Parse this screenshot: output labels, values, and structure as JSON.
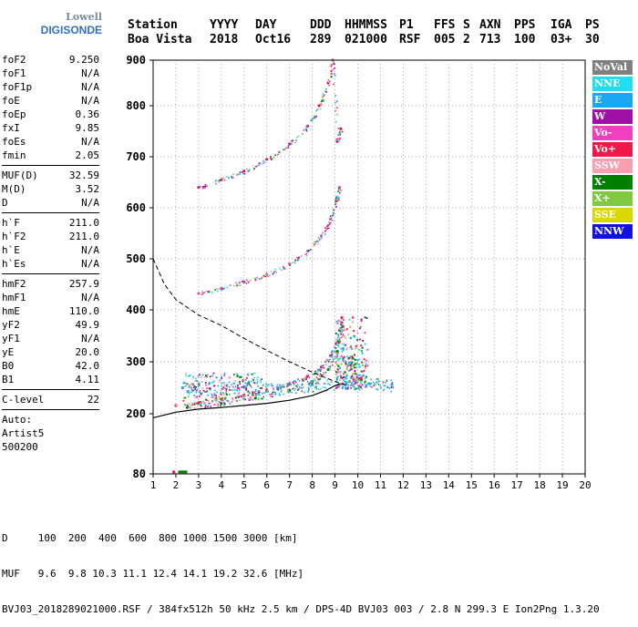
{
  "logo": {
    "line1": "Lowell",
    "line2": "DIGISONDE"
  },
  "header": {
    "labels": [
      "Station",
      "YYYY",
      "DAY",
      "DDD",
      "HHMMSS",
      "P1",
      "FFS",
      "S",
      "AXN",
      "PPS",
      "IGA",
      "PS"
    ],
    "values": [
      "Boa Vista",
      "2018",
      "Oct16",
      "289",
      "021000",
      "RSF",
      "005",
      "2",
      "713",
      "100",
      "03+",
      "30"
    ]
  },
  "params": {
    "group1": [
      {
        "k": "foF2",
        "v": "9.250"
      },
      {
        "k": "foF1",
        "v": "N/A"
      },
      {
        "k": "foF1p",
        "v": "N/A"
      },
      {
        "k": "foE",
        "v": "N/A"
      },
      {
        "k": "foEp",
        "v": "0.36"
      },
      {
        "k": "fxI",
        "v": "9.85"
      },
      {
        "k": "foEs",
        "v": "N/A"
      },
      {
        "k": "fmin",
        "v": "2.05"
      }
    ],
    "group2": [
      {
        "k": "MUF(D)",
        "v": "32.59"
      },
      {
        "k": "M(D)",
        "v": "3.52"
      },
      {
        "k": "D",
        "v": "N/A"
      }
    ],
    "group3": [
      {
        "k": "h`F",
        "v": "211.0"
      },
      {
        "k": "h`F2",
        "v": "211.0"
      },
      {
        "k": "h`E",
        "v": "N/A"
      },
      {
        "k": "h`Es",
        "v": "N/A"
      }
    ],
    "group4": [
      {
        "k": "hmF2",
        "v": "257.9"
      },
      {
        "k": "hmF1",
        "v": "N/A"
      },
      {
        "k": "hmE",
        "v": "110.0"
      },
      {
        "k": "yF2",
        "v": "49.9"
      },
      {
        "k": "yF1",
        "v": "N/A"
      },
      {
        "k": "yE",
        "v": "20.0"
      },
      {
        "k": "B0",
        "v": "42.0"
      },
      {
        "k": "B1",
        "v": "4.11"
      }
    ],
    "group5": [
      {
        "k": "C-level",
        "v": "22"
      }
    ],
    "group6": [
      "Auto:",
      "Artist5",
      "500200"
    ]
  },
  "legend": [
    {
      "label": "NoVal",
      "color": "#808080"
    },
    {
      "label": "NNE",
      "color": "#22ddf0"
    },
    {
      "label": "E",
      "color": "#1aa6f0"
    },
    {
      "label": "W",
      "color": "#a010a8"
    },
    {
      "label": "Vo-",
      "color": "#f040c0"
    },
    {
      "label": "Vo+",
      "color": "#f01848"
    },
    {
      "label": "SSW",
      "color": "#f8a0b0"
    },
    {
      "label": "X-",
      "color": "#008000"
    },
    {
      "label": "X+",
      "color": "#80c840"
    },
    {
      "label": "SSE",
      "color": "#d8d800"
    },
    {
      "label": "NNW",
      "color": "#1010e0"
    }
  ],
  "footer": {
    "line1": "D     100  200  400  600  800 1000 1500 3000 [km]",
    "line2": "MUF   9.6  9.8 10.3 11.1 12.4 14.1 19.2 32.6 [MHz]",
    "line3": "BVJ03_2018289021000.RSF / 384fx512h 50 kHz 2.5 km / DPS-4D BVJ03 003 / 2.8 N 299.3 E Ion2Png 1.3.20"
  },
  "chart_data": {
    "type": "scatter",
    "xlim": [
      1,
      20
    ],
    "ylim": [
      80,
      900
    ],
    "xticks": [
      1,
      2,
      3,
      4,
      5,
      6,
      7,
      8,
      9,
      10,
      11,
      12,
      13,
      14,
      15,
      16,
      17,
      18,
      19,
      20
    ],
    "yticks": [
      80,
      200,
      300,
      400,
      500,
      600,
      700,
      800,
      900
    ],
    "grid": "dotted",
    "traces": [
      {
        "name": "F2 1st hop O",
        "color": "#f01848",
        "x": [
          2.0,
          3.0,
          4.0,
          5.0,
          6.0,
          7.0,
          7.8,
          8.4,
          8.8,
          9.05,
          9.2,
          9.3
        ],
        "y": [
          216,
          221,
          228,
          236,
          246,
          258,
          272,
          290,
          312,
          335,
          360,
          385
        ]
      },
      {
        "name": "F2 2nd hop",
        "color": "#f040c0",
        "x": [
          3.0,
          4.0,
          5.0,
          6.0,
          7.0,
          7.8,
          8.4,
          8.8,
          9.05,
          9.2
        ],
        "y": [
          432,
          442,
          455,
          470,
          490,
          515,
          545,
          578,
          615,
          640
        ]
      },
      {
        "name": "F2 3rd hop",
        "color": "#f01848",
        "x": [
          3.0,
          4.0,
          5.0,
          6.0,
          7.0,
          7.8,
          8.3,
          8.7,
          8.9,
          9.1,
          9.25
        ],
        "y": [
          640,
          655,
          672,
          695,
          725,
          760,
          800,
          850,
          900,
          730,
          755
        ]
      },
      {
        "name": "X-mode",
        "color": "#008000",
        "x": [
          2.5,
          4.0,
          5.5,
          7.0,
          8.0,
          8.7,
          9.1,
          9.35
        ],
        "y": [
          212,
          220,
          230,
          245,
          262,
          285,
          320,
          368
        ]
      },
      {
        "name": "Spread F",
        "color": "#1aa6f0",
        "x": [
          2.3,
          3.5,
          5.0,
          6.5,
          8.0,
          9.5,
          10.5,
          11.5
        ],
        "y": [
          250,
          248,
          252,
          250,
          256,
          260,
          258,
          256
        ]
      }
    ],
    "profile": {
      "x": [
        1.0,
        2.0,
        3.0,
        4.0,
        5.0,
        6.0,
        7.0,
        8.0,
        8.6,
        9.0,
        9.25
      ],
      "y": [
        192,
        203,
        209,
        212,
        216,
        220,
        226,
        235,
        245,
        254,
        258
      ]
    },
    "muf_curve": {
      "x": [
        1.0,
        1.5,
        2.0,
        3.0,
        4.0,
        5.0,
        6.0,
        7.0,
        8.0,
        9.0,
        9.5
      ],
      "y": [
        500,
        450,
        420,
        390,
        370,
        345,
        322,
        300,
        280,
        262,
        255
      ]
    },
    "colors": {
      "profile": "#000000",
      "muf": "#000000",
      "grid": "#808080"
    }
  }
}
